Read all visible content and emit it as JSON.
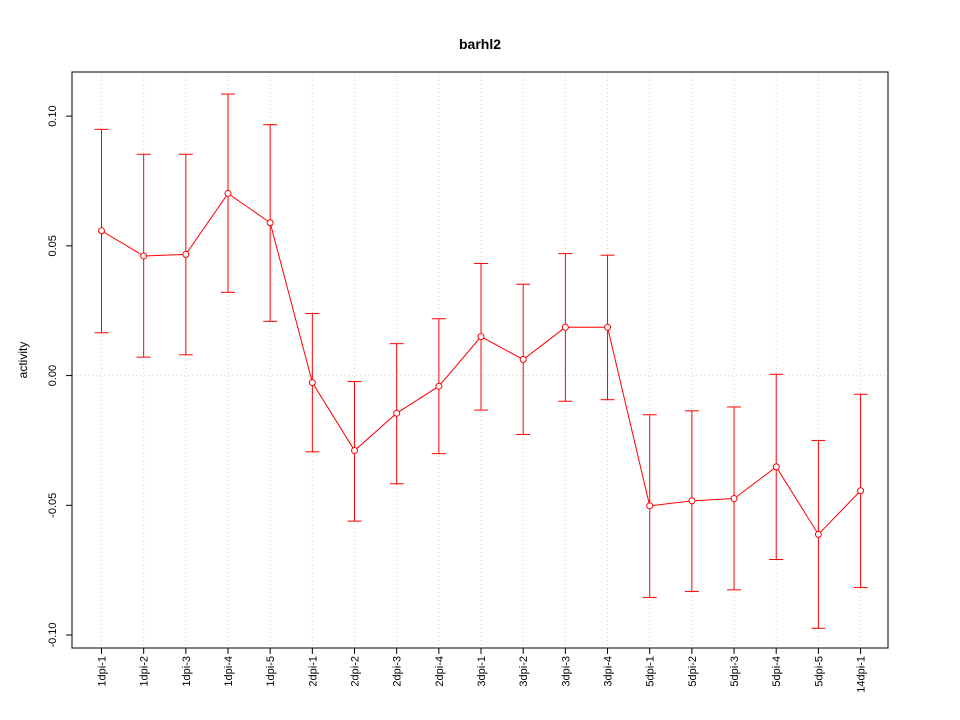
{
  "chart_data": {
    "type": "line",
    "title": "barhl2",
    "xlabel": "",
    "ylabel": "activity",
    "ylim": [
      -0.105,
      0.117
    ],
    "yticks": [
      -0.1,
      -0.05,
      0.0,
      0.05,
      0.1
    ],
    "ytick_labels": [
      "-0.10",
      "-0.05",
      "0.00",
      "0.05",
      "0.10"
    ],
    "grid": true,
    "categories": [
      "1dpi-1",
      "1dpi-2",
      "1dpi-3",
      "1dpi-4",
      "1dpi-5",
      "2dpi-1",
      "2dpi-2",
      "2dpi-3",
      "2dpi-4",
      "3dpi-1",
      "3dpi-2",
      "3dpi-3",
      "3dpi-4",
      "5dpi-1",
      "5dpi-2",
      "5dpi-3",
      "5dpi-4",
      "5dpi-5",
      "14dpi-1"
    ],
    "series": [
      {
        "color": "#ff0000",
        "values": [
          0.0558,
          0.0461,
          0.0467,
          0.0702,
          0.0589,
          -0.0027,
          -0.0289,
          -0.0145,
          -0.0041,
          0.015,
          0.0062,
          0.0186,
          0.0186,
          -0.0502,
          -0.0483,
          -0.0474,
          -0.0352,
          -0.0612,
          -0.0444
        ],
        "upper": [
          0.0949,
          0.0853,
          0.0853,
          0.1085,
          0.0967,
          0.0239,
          -0.0023,
          0.0123,
          0.0219,
          0.0432,
          0.0352,
          0.047,
          0.0464,
          -0.0151,
          -0.0136,
          -0.0121,
          0.0005,
          -0.025,
          -0.0072
        ],
        "lower": [
          0.0165,
          0.0071,
          0.008,
          0.0321,
          0.0209,
          -0.0294,
          -0.0561,
          -0.0417,
          -0.0301,
          -0.0133,
          -0.0227,
          -0.0099,
          -0.0093,
          -0.0855,
          -0.0832,
          -0.0826,
          -0.0709,
          -0.0974,
          -0.0817
        ]
      }
    ]
  }
}
